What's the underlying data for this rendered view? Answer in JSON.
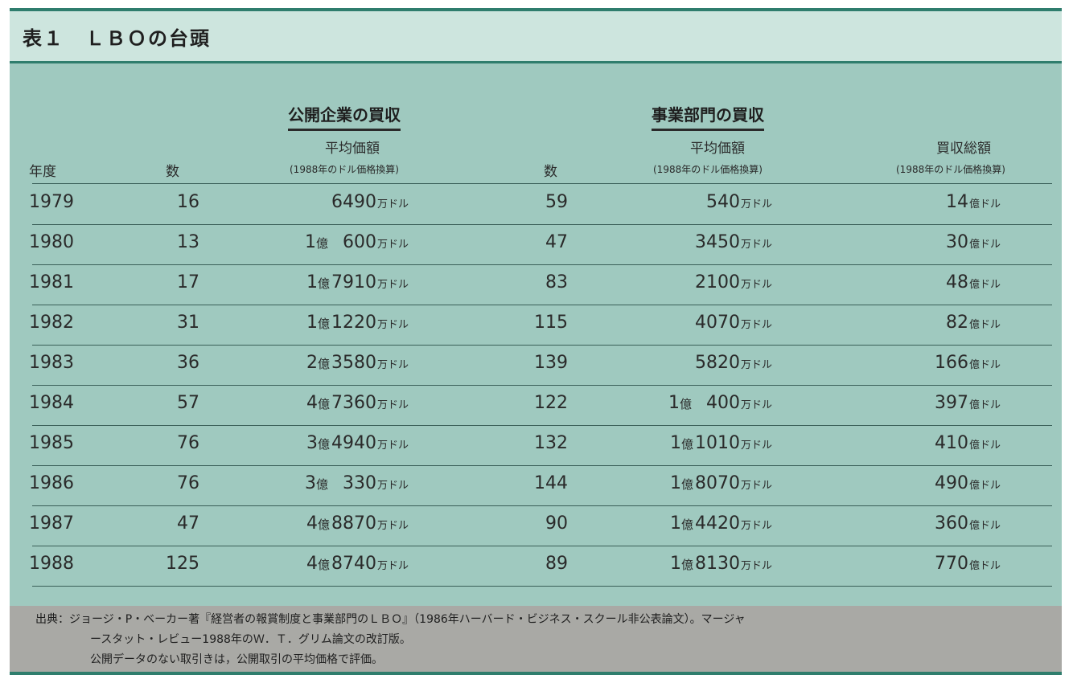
{
  "title": "表１　ＬＢＯの台頭",
  "groups": {
    "public": "公開企業の買収",
    "division": "事業部門の買収"
  },
  "headers": {
    "year": "年度",
    "count1": "数",
    "avg1": "平均価額",
    "avg1_note": "(1988年のドル価格換算)",
    "count2": "数",
    "avg2": "平均価額",
    "avg2_note": "(1988年のドル価格換算)",
    "total2": "買収総額",
    "total2_note": "(1988年のドル価格換算)"
  },
  "units": {
    "man": "万ドル",
    "oku_dollar": "億ドル",
    "oku": "億"
  },
  "rows": [
    {
      "year": "1979",
      "n1": "16",
      "p1_oku": "",
      "p1_man": "6490",
      "n2": "59",
      "p2_oku": "",
      "p2_man": "540",
      "t2": "14"
    },
    {
      "year": "1980",
      "n1": "13",
      "p1_oku": "1",
      "p1_man": "600",
      "n2": "47",
      "p2_oku": "",
      "p2_man": "3450",
      "t2": "30"
    },
    {
      "year": "1981",
      "n1": "17",
      "p1_oku": "1",
      "p1_man": "7910",
      "n2": "83",
      "p2_oku": "",
      "p2_man": "2100",
      "t2": "48"
    },
    {
      "year": "1982",
      "n1": "31",
      "p1_oku": "1",
      "p1_man": "1220",
      "n2": "115",
      "p2_oku": "",
      "p2_man": "4070",
      "t2": "82"
    },
    {
      "year": "1983",
      "n1": "36",
      "p1_oku": "2",
      "p1_man": "3580",
      "n2": "139",
      "p2_oku": "",
      "p2_man": "5820",
      "t2": "166"
    },
    {
      "year": "1984",
      "n1": "57",
      "p1_oku": "4",
      "p1_man": "7360",
      "n2": "122",
      "p2_oku": "1",
      "p2_man": "400",
      "t2": "397"
    },
    {
      "year": "1985",
      "n1": "76",
      "p1_oku": "3",
      "p1_man": "4940",
      "n2": "132",
      "p2_oku": "1",
      "p2_man": "1010",
      "t2": "410"
    },
    {
      "year": "1986",
      "n1": "76",
      "p1_oku": "3",
      "p1_man": "330",
      "n2": "144",
      "p2_oku": "1",
      "p2_man": "8070",
      "t2": "490"
    },
    {
      "year": "1987",
      "n1": "47",
      "p1_oku": "4",
      "p1_man": "8870",
      "n2": "90",
      "p2_oku": "1",
      "p2_man": "4420",
      "t2": "360"
    },
    {
      "year": "1988",
      "n1": "125",
      "p1_oku": "4",
      "p1_man": "8740",
      "n2": "89",
      "p2_oku": "1",
      "p2_man": "8130",
      "t2": "770"
    }
  ],
  "footer": {
    "line1": "出典：ジョージ・P・ベーカー著『経営者の報賞制度と事業部門のＬＢＯ』（1986年ハーバード・ビジネス・スクール非公表論文）。マージャ",
    "line2": "ースタット・レビュー1988年のＷ．Ｔ．グリム論文の改訂版。",
    "line3": "公開データのない取引きは，公開取引の平均価格で評価。"
  },
  "colors": {
    "panel": "#9fc9bf",
    "title_bar": "#cde5de",
    "accent": "#2f7d6d",
    "footer": "#a9a9a5"
  }
}
